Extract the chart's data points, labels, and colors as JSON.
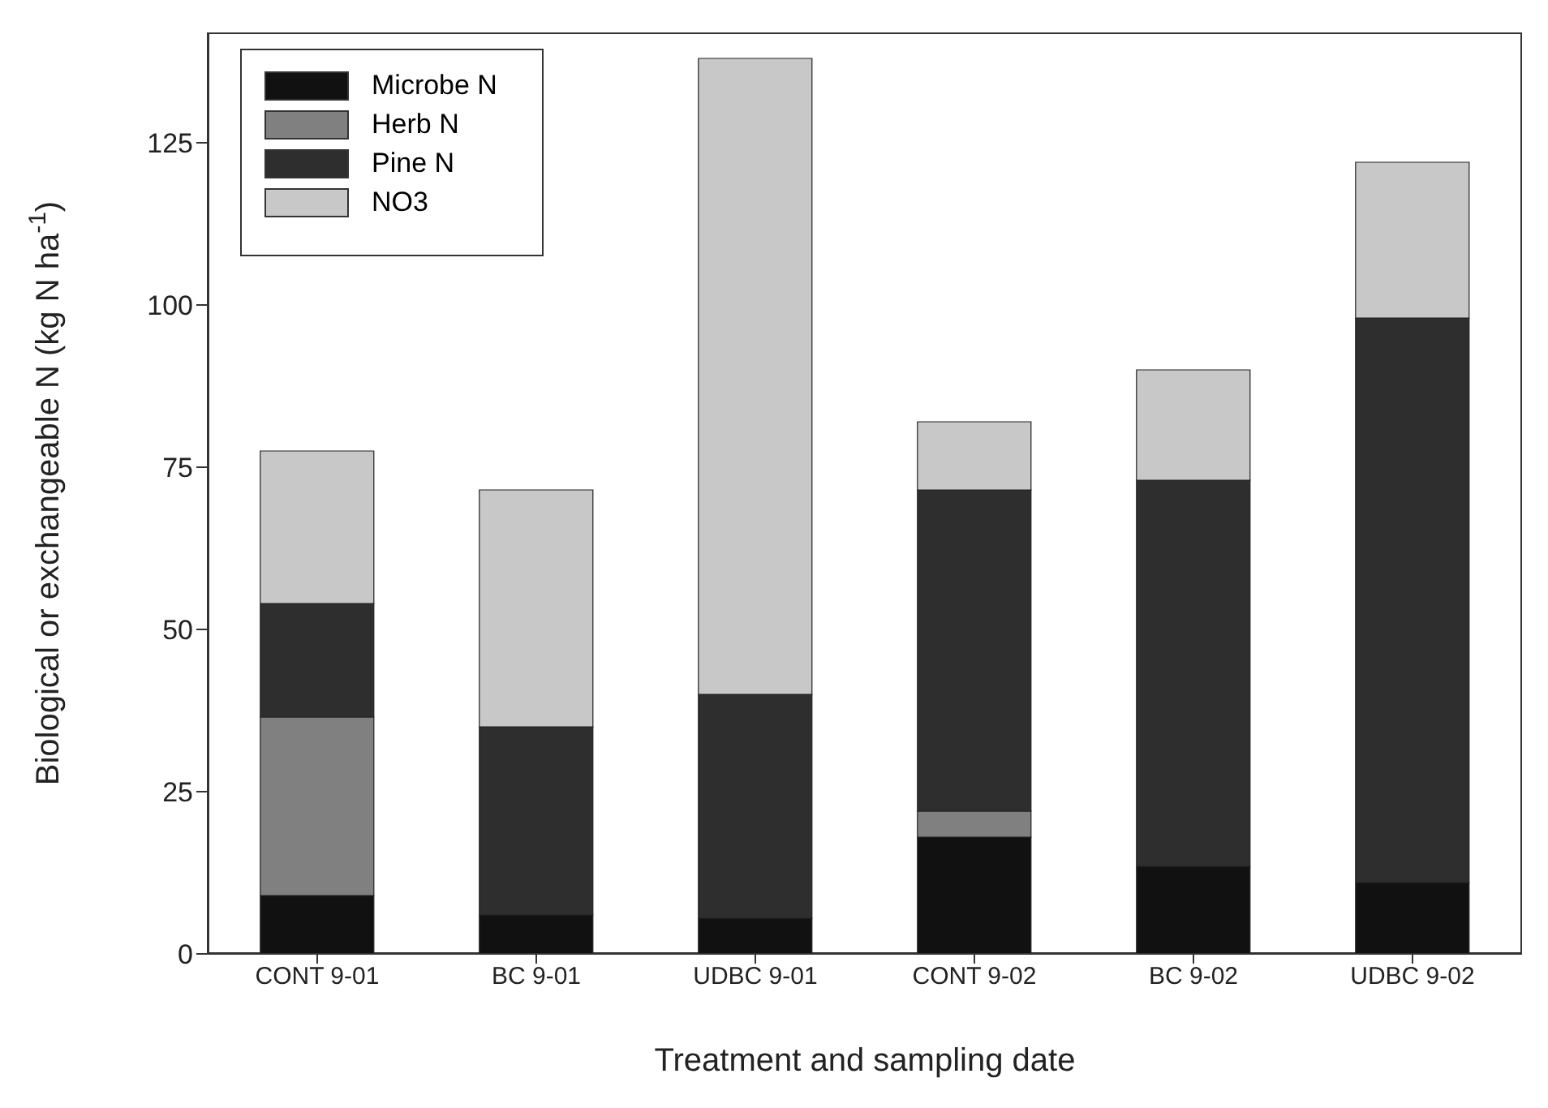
{
  "chart_data": {
    "type": "bar",
    "stacked": true,
    "xlabel": "Treatment and sampling date",
    "ylabel": "Biological or exchangeable N (kg N ha$^{-1}$)",
    "categories": [
      "CONT 9-01",
      "BC 9-01",
      "UDBC 9-01",
      "CONT 9-02",
      "BC 9-02",
      "UDBC 9-02"
    ],
    "series": [
      {
        "name": "Microbe N",
        "color": "#111111",
        "values": [
          9,
          6,
          5.5,
          18,
          13.5,
          11
        ]
      },
      {
        "name": "Herb N",
        "color": "#808080",
        "values": [
          27.5,
          0,
          0,
          4,
          0,
          0
        ]
      },
      {
        "name": "Pine N",
        "color": "#2e2e2e",
        "values": [
          17.5,
          29,
          34.5,
          49.5,
          59.5,
          87
        ]
      },
      {
        "name": "NO3",
        "color": "#c8c8c8",
        "values": [
          23.5,
          36.5,
          98,
          10.5,
          17,
          24
        ]
      }
    ],
    "ylim": [
      0,
      142
    ],
    "yticks": [
      0,
      25,
      50,
      75,
      100,
      125
    ],
    "grid": false,
    "legend": "top left"
  }
}
